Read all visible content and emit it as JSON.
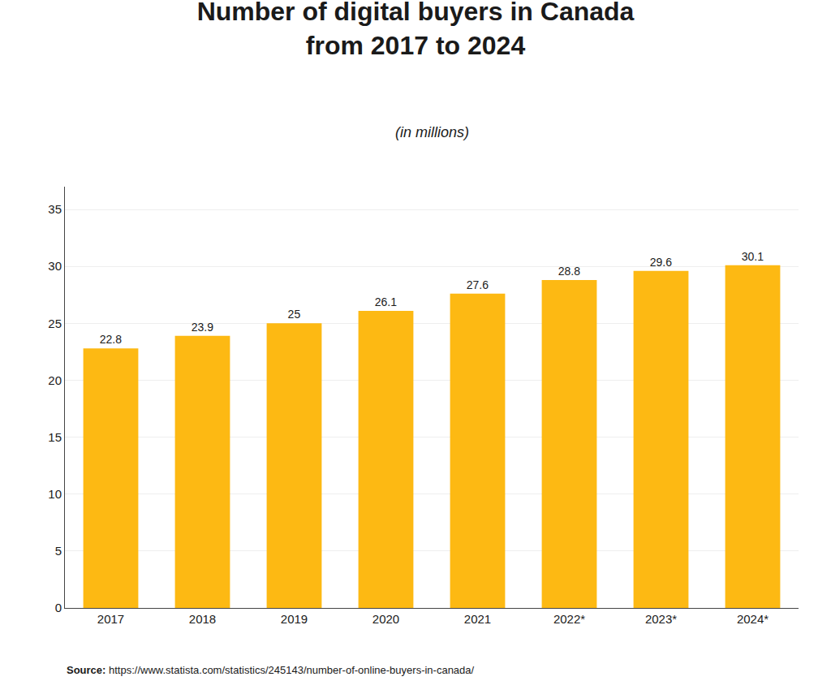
{
  "chart_data": {
    "type": "bar",
    "title": "Number of digital buyers in Canada\nfrom 2017 to 2024",
    "subtitle": "(in millions)",
    "categories": [
      "2017",
      "2018",
      "2019",
      "2020",
      "2021",
      "2022*",
      "2023*",
      "2024*"
    ],
    "values": [
      22.8,
      23.9,
      25.0,
      26.1,
      27.6,
      28.8,
      29.6,
      30.1
    ],
    "color": "#FDB913",
    "ylim": [
      0,
      37
    ],
    "yticks": [
      0,
      5,
      10,
      15,
      20,
      25,
      30,
      35
    ],
    "grid": true,
    "data_labels": true,
    "annotations": [
      "Source: https://www.statista.com/statistics/245143/number-of-online-buyers-in-canada/"
    ]
  }
}
